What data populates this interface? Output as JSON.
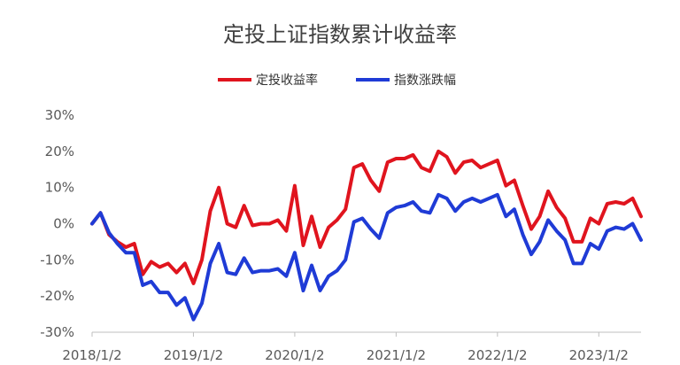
{
  "chart_data": {
    "type": "line",
    "title": "定投上证指数累计收益率",
    "legend_position": "top-center",
    "grid": false,
    "x_tick_labels": [
      "2018/1/2",
      "2019/1/2",
      "2020/1/2",
      "2021/1/2",
      "2022/1/2",
      "2023/1/2"
    ],
    "y_tick_labels": [
      "30%",
      "20%",
      "10%",
      "0%",
      "-10%",
      "-20%",
      "-30%"
    ],
    "ylim": [
      -30,
      30
    ],
    "y_unit": "%",
    "x": [
      "2018/1",
      "2018/2",
      "2018/3",
      "2018/4",
      "2018/5",
      "2018/6",
      "2018/7",
      "2018/8",
      "2018/9",
      "2018/10",
      "2018/11",
      "2018/12",
      "2019/1",
      "2019/2",
      "2019/3",
      "2019/4",
      "2019/5",
      "2019/6",
      "2019/7",
      "2019/8",
      "2019/9",
      "2019/10",
      "2019/11",
      "2019/12",
      "2020/1",
      "2020/2",
      "2020/3",
      "2020/4",
      "2020/5",
      "2020/6",
      "2020/7",
      "2020/8",
      "2020/9",
      "2020/10",
      "2020/11",
      "2020/12",
      "2021/1",
      "2021/2",
      "2021/3",
      "2021/4",
      "2021/5",
      "2021/6",
      "2021/7",
      "2021/8",
      "2021/9",
      "2021/10",
      "2021/11",
      "2021/12",
      "2022/1",
      "2022/2",
      "2022/3",
      "2022/4",
      "2022/5",
      "2022/6",
      "2022/7",
      "2022/8",
      "2022/9",
      "2022/10",
      "2022/11",
      "2022/12",
      "2023/1",
      "2023/2",
      "2023/3",
      "2023/4",
      "2023/5",
      "2023/6"
    ],
    "series": [
      {
        "name": "定投收益率",
        "color": "#e0141e",
        "values": [
          0,
          3,
          -3,
          -5,
          -6.5,
          -5.5,
          -14,
          -10.5,
          -12,
          -11,
          -13.5,
          -11,
          -16.5,
          -10,
          3.5,
          10,
          0,
          -1,
          5,
          -0.5,
          0,
          0,
          1,
          -2,
          10.5,
          -6,
          2,
          -6.5,
          -1,
          1,
          4,
          15.5,
          16.5,
          12,
          9,
          17,
          18,
          18,
          19,
          15.5,
          14.5,
          20,
          18.5,
          14,
          17,
          17.5,
          15.5,
          16.5,
          17.5,
          10.5,
          12,
          5,
          -1.5,
          2,
          9,
          4.5,
          1.5,
          -5,
          -5,
          1.5,
          0,
          5.5,
          6,
          5.5,
          7,
          2
        ]
      },
      {
        "name": "指数涨跌幅",
        "color": "#1f3bd6",
        "values": [
          0,
          3,
          -2.5,
          -5.5,
          -8,
          -8,
          -17,
          -16,
          -19,
          -19,
          -22.5,
          -20.5,
          -26.5,
          -22,
          -11,
          -5.5,
          -13.5,
          -14,
          -9.5,
          -13.5,
          -13,
          -13,
          -12.5,
          -14.5,
          -8,
          -18.5,
          -11.5,
          -18.5,
          -14.5,
          -13,
          -10,
          0.5,
          1.5,
          -1.5,
          -4,
          3,
          4.5,
          5,
          6,
          3.5,
          3,
          8,
          7,
          3.5,
          6,
          7,
          6,
          7,
          8,
          2,
          4,
          -3,
          -8.5,
          -5,
          1,
          -2,
          -4.5,
          -11,
          -11,
          -5.5,
          -7,
          -2,
          -1,
          -1.5,
          0,
          -4.5
        ]
      }
    ]
  }
}
